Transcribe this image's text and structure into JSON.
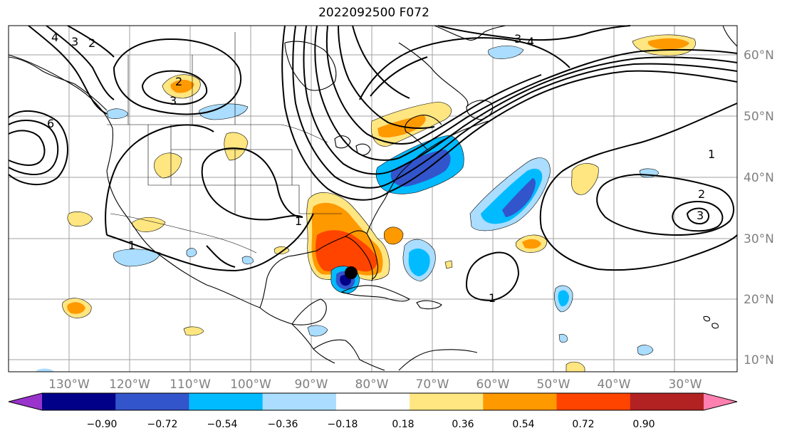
{
  "title": "2022092500 F072",
  "map": {
    "lat_labels": [
      "60°N",
      "50°N",
      "40°N",
      "30°N",
      "20°N",
      "10°N"
    ],
    "lon_labels": [
      "130°W",
      "120°W",
      "110°W",
      "100°W",
      "90°W",
      "80°W",
      "70°W",
      "60°W",
      "50°W",
      "40°W",
      "30°W"
    ],
    "contour_labels": [
      "4",
      "3",
      "2",
      "6",
      "2",
      "3",
      "1",
      "1",
      "1",
      "2",
      "3",
      "1",
      "3",
      "4"
    ]
  },
  "colorbar": {
    "colors": [
      "#9933cc",
      "#000088",
      "#3355cc",
      "#00bbff",
      "#aaddff",
      "#ffffff",
      "#ffe680",
      "#ff9900",
      "#ff4400",
      "#b22222",
      "#ff80b0"
    ],
    "tick_labels": [
      "−0.90",
      "−0.72",
      "−0.54",
      "−0.36",
      "−0.18",
      "0.18",
      "0.36",
      "0.54",
      "0.72",
      "0.90"
    ]
  }
}
